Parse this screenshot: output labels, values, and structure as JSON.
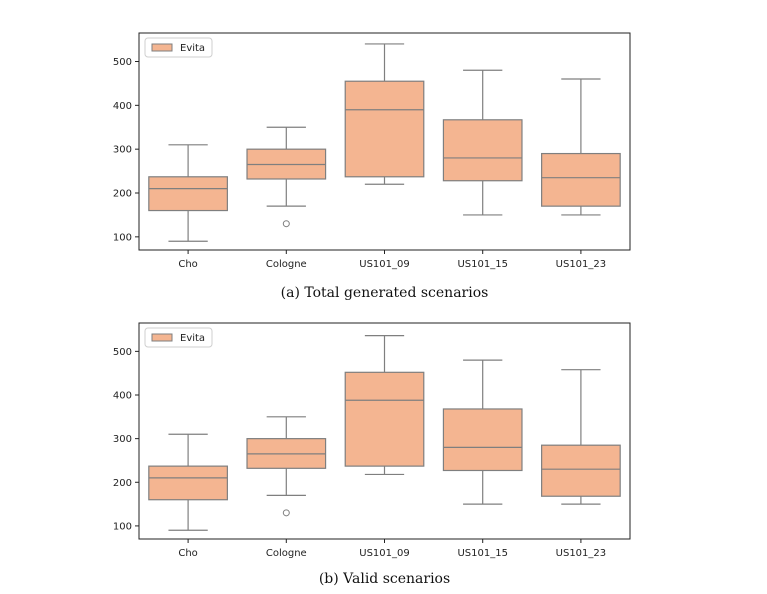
{
  "chart_data": [
    {
      "type": "box",
      "caption": "(a) Total generated scenarios",
      "legend": {
        "label": "Evita",
        "placement": "top-left"
      },
      "categories": [
        "Cho",
        "Cologne",
        "US101_09",
        "US101_15",
        "US101_23"
      ],
      "yticks": [
        100,
        200,
        300,
        400,
        500
      ],
      "ylim": [
        70,
        565
      ],
      "fill_color": "#f4b591",
      "edge_color": "#7f7f7f",
      "boxes": [
        {
          "whislo": 90,
          "q1": 160,
          "med": 210,
          "q3": 237,
          "whishi": 310,
          "fliers": []
        },
        {
          "whislo": 170,
          "q1": 232,
          "med": 265,
          "q3": 300,
          "whishi": 350,
          "fliers": [
            130
          ]
        },
        {
          "whislo": 220,
          "q1": 237,
          "med": 390,
          "q3": 455,
          "whishi": 540,
          "fliers": []
        },
        {
          "whislo": 150,
          "q1": 228,
          "med": 280,
          "q3": 367,
          "whishi": 480,
          "fliers": []
        },
        {
          "whislo": 150,
          "q1": 170,
          "med": 235,
          "q3": 290,
          "whishi": 460,
          "fliers": []
        }
      ]
    },
    {
      "type": "box",
      "caption": "(b) Valid scenarios",
      "legend": {
        "label": "Evita",
        "placement": "top-left"
      },
      "categories": [
        "Cho",
        "Cologne",
        "US101_09",
        "US101_15",
        "US101_23"
      ],
      "yticks": [
        100,
        200,
        300,
        400,
        500
      ],
      "ylim": [
        70,
        565
      ],
      "fill_color": "#f4b591",
      "edge_color": "#7f7f7f",
      "boxes": [
        {
          "whislo": 90,
          "q1": 160,
          "med": 210,
          "q3": 237,
          "whishi": 310,
          "fliers": []
        },
        {
          "whislo": 170,
          "q1": 232,
          "med": 265,
          "q3": 300,
          "whishi": 350,
          "fliers": [
            130
          ]
        },
        {
          "whislo": 218,
          "q1": 237,
          "med": 388,
          "q3": 452,
          "whishi": 536,
          "fliers": []
        },
        {
          "whislo": 150,
          "q1": 227,
          "med": 280,
          "q3": 368,
          "whishi": 480,
          "fliers": []
        },
        {
          "whislo": 150,
          "q1": 168,
          "med": 230,
          "q3": 285,
          "whishi": 458,
          "fliers": []
        }
      ]
    }
  ]
}
